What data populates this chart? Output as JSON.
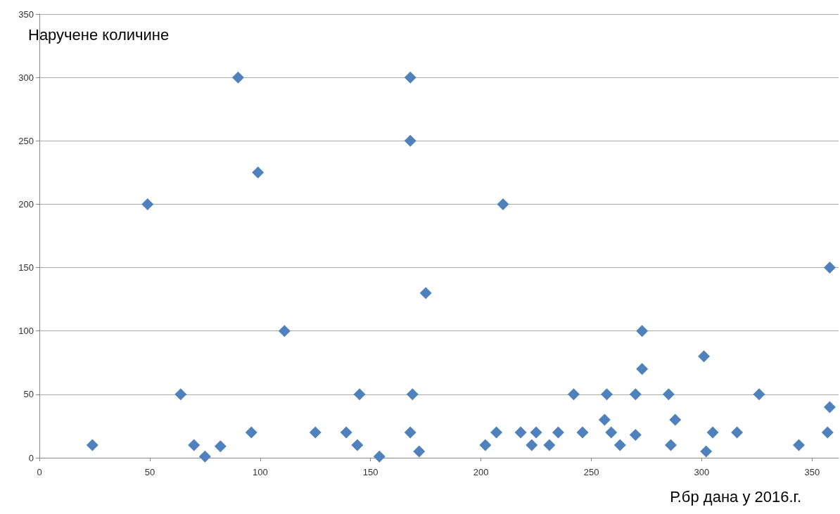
{
  "chart_data": {
    "type": "scatter",
    "xlabel": "Р.бр дана у 2016.г.",
    "ylabel": "Наручене количине",
    "x": [
      24,
      49,
      64,
      70,
      75,
      82,
      90,
      96,
      99,
      111,
      125,
      139,
      144,
      145,
      154,
      168,
      168,
      168,
      169,
      172,
      175,
      202,
      207,
      210,
      218,
      223,
      225,
      231,
      235,
      242,
      246,
      256,
      257,
      259,
      263,
      270,
      270,
      273,
      273,
      285,
      286,
      288,
      301,
      302,
      305,
      316,
      326,
      344,
      358,
      358,
      357
    ],
    "series": [
      {
        "color": "#4f81bd",
        "values": [
          10,
          200,
          50,
          10,
          1,
          9,
          300,
          20,
          225,
          100,
          20,
          20,
          10,
          50,
          1,
          20,
          300,
          250,
          50,
          5,
          130,
          10,
          20,
          200,
          20,
          10,
          20,
          10,
          20,
          50,
          20,
          30,
          50,
          20,
          10,
          50,
          18,
          100,
          70,
          50,
          10,
          30,
          80,
          5,
          20,
          20,
          50,
          10,
          150,
          40,
          20
        ]
      }
    ],
    "xlim": [
      0,
      362
    ],
    "xticks": [
      0,
      50,
      100,
      150,
      200,
      250,
      300,
      350
    ],
    "ylim": [
      0,
      350
    ],
    "yticks": [
      0,
      50,
      100,
      150,
      200,
      250,
      300,
      350
    ],
    "grid": "y",
    "marker": "diamond"
  }
}
